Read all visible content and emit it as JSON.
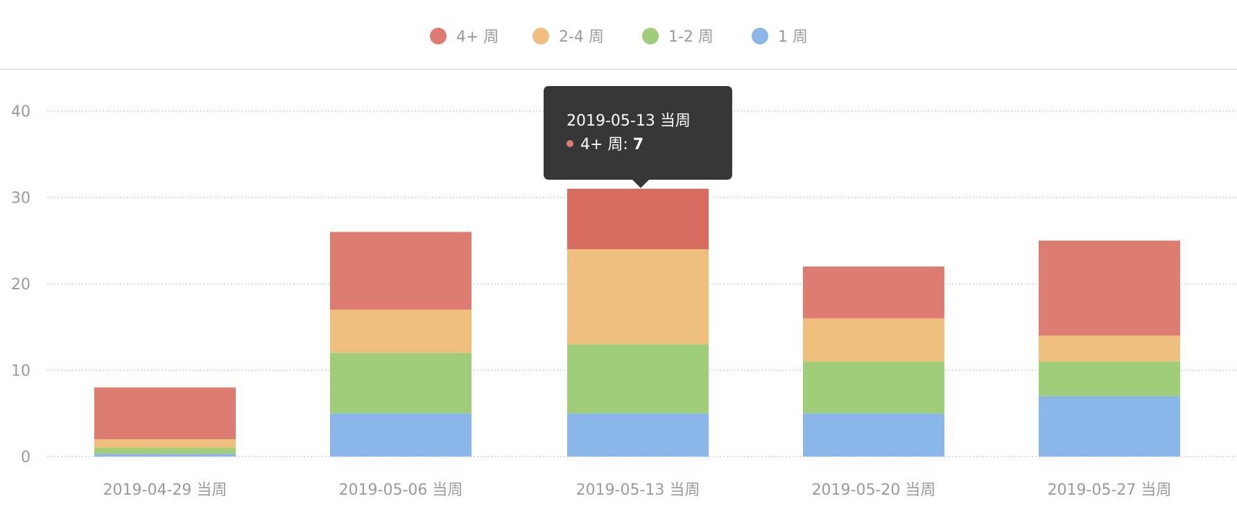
{
  "chart_data": {
    "type": "bar",
    "stacked": true,
    "categories": [
      "2019-04-29 当周",
      "2019-05-06 当周",
      "2019-05-13 当周",
      "2019-05-20 当周",
      "2019-05-27 当周"
    ],
    "series": [
      {
        "name": "1 周",
        "color": "#8ab6ea",
        "values": [
          0.3,
          5,
          5,
          5,
          7
        ]
      },
      {
        "name": "1-2 周",
        "color": "#a0cd7a",
        "values": [
          0.7,
          7,
          8,
          6,
          4
        ]
      },
      {
        "name": "2-4 周",
        "color": "#efc07d",
        "values": [
          1,
          5,
          11,
          5,
          3
        ]
      },
      {
        "name": "4+ 周",
        "color": "#dd7d72",
        "values": [
          6,
          9,
          7,
          6,
          11
        ]
      }
    ],
    "legend_order": [
      "4+ 周",
      "2-4 周",
      "1-2 周",
      "1 周"
    ],
    "legend_position": "top-center",
    "ylim": [
      0,
      40
    ],
    "yticks": [
      "0",
      "10",
      "20",
      "30",
      "40"
    ],
    "grid": true,
    "highlight": {
      "category_index": 2,
      "series_name": "4+ 周",
      "color": "#d86b60"
    },
    "tooltip": {
      "title": "2019-05-13 当周",
      "series_label": "4+ 周: ",
      "value": "7",
      "dot_color": "#dd7d72"
    }
  }
}
